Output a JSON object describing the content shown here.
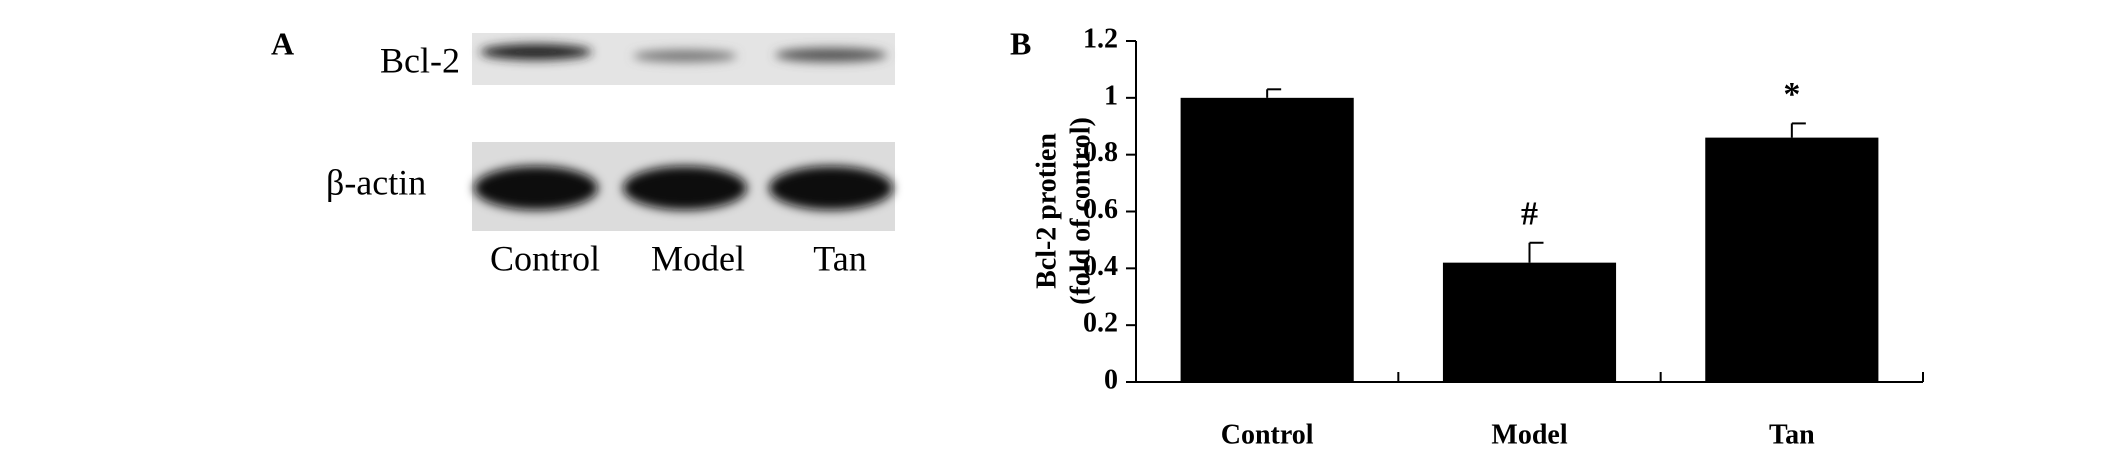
{
  "panel_a": {
    "label": "A",
    "rows": [
      "Bcl-2",
      "β-actin"
    ],
    "lanes": [
      "Control",
      "Model",
      "Tan"
    ]
  },
  "chart_data": {
    "type": "bar",
    "panel_label": "B",
    "ylabel": [
      "Bcl-2 protien",
      "(fold of control)"
    ],
    "categories": [
      "Control",
      "Model",
      "Tan"
    ],
    "values": [
      1.0,
      0.42,
      0.86
    ],
    "errors": [
      0.03,
      0.07,
      0.05
    ],
    "color": "#000000",
    "annotations": [
      {
        "category": "Model",
        "text": "#"
      },
      {
        "category": "Tan",
        "text": "*"
      }
    ],
    "ylim": [
      0,
      1.2
    ],
    "yticks": [
      0,
      0.2,
      0.4,
      0.6,
      0.8,
      1,
      1.2
    ]
  }
}
